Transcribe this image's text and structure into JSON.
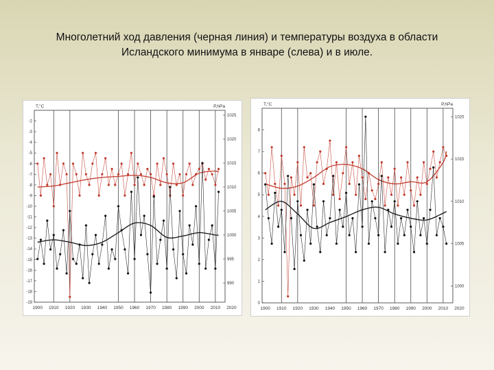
{
  "slide": {
    "title_line1": "Многолетний ход давления (черная линия) и температуры воздуха в области",
    "title_line2": "Исландского минимума в январе (слева) и в июле."
  },
  "colors": {
    "temperature": "#c0392b",
    "pressure": "#111111",
    "grid": "#4a4a4a"
  },
  "chart_data": [
    {
      "type": "line",
      "title": "",
      "xlabel": "",
      "ylabel_left": "T,°C",
      "ylabel_right": "P,hPa",
      "xlim": [
        1898,
        2016
      ],
      "xticks": [
        1900,
        1910,
        1920,
        1930,
        1940,
        1950,
        1960,
        1970,
        1980,
        1990,
        2000,
        2010,
        2020
      ],
      "y_left_lim": [
        -19,
        -1
      ],
      "y_left_ticks": [
        -2,
        -3,
        -4,
        -5,
        -6,
        -7,
        -8,
        -9,
        -10,
        -11,
        -12,
        -13,
        -14,
        -15,
        -16,
        -17,
        -18,
        -19
      ],
      "y_right_lim": [
        986,
        1026
      ],
      "y_right_ticks": [
        990,
        995,
        1000,
        1005,
        1010,
        1015,
        1020,
        1025
      ],
      "vertical_lines": [
        1910,
        1920,
        1950,
        1960,
        1970,
        1980,
        1990,
        2000,
        2010
      ],
      "series": [
        {
          "axis": "left",
          "color": "#c0392b",
          "x": [
            1900,
            1902,
            1904,
            1906,
            1908,
            1910,
            1912,
            1914,
            1916,
            1918,
            1920,
            1922,
            1924,
            1926,
            1928,
            1930,
            1932,
            1934,
            1936,
            1938,
            1940,
            1942,
            1944,
            1946,
            1948,
            1950,
            1952,
            1954,
            1956,
            1958,
            1960,
            1962,
            1964,
            1966,
            1968,
            1970,
            1972,
            1974,
            1976,
            1978,
            1980,
            1982,
            1984,
            1986,
            1988,
            1990,
            1992,
            1994,
            1996,
            1998,
            2000,
            2002,
            2004,
            2006,
            2008,
            2010,
            2012
          ],
          "values": [
            -6,
            -9,
            -5.5,
            -8,
            -7,
            -10,
            -5,
            -8,
            -6,
            -7,
            -18.5,
            -6,
            -7,
            -9,
            -5,
            -7,
            -8,
            -6,
            -5,
            -9,
            -7,
            -5.5,
            -8,
            -6.5,
            -8,
            -7,
            -6,
            -9,
            -7,
            -5,
            -8,
            -6,
            -7,
            -8,
            -6.5,
            -7,
            -9,
            -6,
            -8,
            -5.5,
            -7,
            -9,
            -6,
            -8,
            -7,
            -9,
            -7,
            -6,
            -8,
            -7,
            -6.5,
            -6,
            -7.5,
            -6.5,
            -7,
            -8,
            -6.5
          ]
        },
        {
          "axis": "left",
          "color": "#c0392b",
          "smooth": true,
          "x": [
            1900,
            1910,
            1920,
            1930,
            1940,
            1950,
            1960,
            1970,
            1980,
            1990,
            2000,
            2010,
            2012
          ],
          "values": [
            -8.2,
            -8.1,
            -7.8,
            -7.5,
            -7.3,
            -7.2,
            -7.1,
            -7.3,
            -7.8,
            -7.8,
            -6.9,
            -6.7,
            -6.8
          ]
        },
        {
          "axis": "right",
          "color": "#111111",
          "x": [
            1900,
            1902,
            1904,
            1906,
            1908,
            1910,
            1912,
            1914,
            1916,
            1918,
            1920,
            1922,
            1924,
            1926,
            1928,
            1930,
            1932,
            1934,
            1936,
            1938,
            1940,
            1942,
            1944,
            1946,
            1948,
            1950,
            1952,
            1954,
            1956,
            1958,
            1960,
            1962,
            1964,
            1966,
            1968,
            1970,
            1972,
            1974,
            1976,
            1978,
            1980,
            1982,
            1984,
            1986,
            1988,
            1990,
            1992,
            1994,
            1996,
            1998,
            2000,
            2002,
            2004,
            2006,
            2008,
            2010,
            2012
          ],
          "values": [
            995,
            999,
            994,
            1003,
            997,
            1000,
            993,
            996,
            1001,
            992,
            1005,
            995,
            994,
            998,
            991,
            1002,
            990,
            996,
            1000,
            994,
            998,
            1004,
            993,
            997,
            995,
            1006,
            1001,
            997,
            992,
            1009,
            995,
            1012,
            1000,
            1004,
            996,
            988,
            1008,
            994,
            999,
            1003,
            993,
            1010,
            997,
            991,
            1005,
            996,
            992,
            1002,
            998,
            1006,
            994,
            1015,
            993,
            999,
            1002,
            993,
            1009
          ]
        },
        {
          "axis": "right",
          "color": "#111111",
          "smooth": true,
          "x": [
            1900,
            1910,
            1920,
            1930,
            1940,
            1950,
            1960,
            1970,
            1980,
            1990,
            2000,
            2010,
            2012
          ],
          "values": [
            998.5,
            999,
            998.5,
            997.8,
            998.5,
            1000.5,
            1002.5,
            1002,
            999.5,
            999.8,
            1000.5,
            1000,
            1000
          ]
        }
      ]
    },
    {
      "type": "line",
      "title": "",
      "xlabel": "",
      "ylabel_left": "T,°C",
      "ylabel_right": "P,hPa",
      "xlim": [
        1898,
        2016
      ],
      "xticks": [
        1900,
        1910,
        1920,
        1930,
        1940,
        1950,
        1960,
        1970,
        1980,
        1990,
        2000,
        2010,
        2020
      ],
      "y_left_lim": [
        0,
        9
      ],
      "y_left_ticks": [
        0,
        1,
        2,
        3,
        4,
        5,
        6,
        7,
        8
      ],
      "y_right_lim": [
        998,
        1021
      ],
      "y_right_ticks": [
        1000,
        1005,
        1010,
        1015,
        1020
      ],
      "vertical_lines": [
        1910,
        1920,
        1950,
        1960,
        1970,
        1980,
        1990,
        2000,
        2010
      ],
      "series": [
        {
          "axis": "left",
          "color": "#c0392b",
          "x": [
            1900,
            1902,
            1904,
            1906,
            1908,
            1910,
            1912,
            1914,
            1916,
            1918,
            1920,
            1922,
            1924,
            1926,
            1928,
            1930,
            1932,
            1934,
            1936,
            1938,
            1940,
            1942,
            1944,
            1946,
            1948,
            1950,
            1952,
            1954,
            1956,
            1958,
            1960,
            1962,
            1964,
            1966,
            1968,
            1970,
            1972,
            1974,
            1976,
            1978,
            1980,
            1982,
            1984,
            1986,
            1988,
            1990,
            1992,
            1994,
            1996,
            1998,
            2000,
            2002,
            2004,
            2006,
            2008,
            2010,
            2012
          ],
          "values": [
            6,
            5,
            7.2,
            5.5,
            4.5,
            6.8,
            5.5,
            0.3,
            5.8,
            5,
            6.5,
            4.5,
            7.2,
            5.8,
            6,
            4.5,
            6.5,
            7,
            5.5,
            6.2,
            7.5,
            5,
            6.5,
            4.8,
            6,
            7.2,
            5.5,
            6.5,
            5,
            6.8,
            5.8,
            4.8,
            6,
            5.2,
            4.8,
            5.5,
            6.5,
            4.5,
            5.8,
            5,
            6.2,
            4.5,
            5.8,
            5,
            6.5,
            5.2,
            4.5,
            5.8,
            5,
            6.5,
            5.5,
            6.2,
            7,
            5.8,
            6.5,
            7.2,
            6.8
          ]
        },
        {
          "axis": "left",
          "color": "#c0392b",
          "smooth": true,
          "x": [
            1900,
            1910,
            1920,
            1930,
            1940,
            1950,
            1960,
            1970,
            1980,
            1990,
            2000,
            2010,
            2012
          ],
          "values": [
            5.5,
            5.3,
            5.4,
            5.8,
            6.3,
            6.4,
            6.2,
            5.7,
            5.5,
            5.6,
            5.6,
            6.5,
            7
          ]
        },
        {
          "axis": "right",
          "color": "#111111",
          "x": [
            1900,
            1902,
            1904,
            1906,
            1908,
            1910,
            1912,
            1914,
            1916,
            1918,
            1920,
            1922,
            1924,
            1926,
            1928,
            1930,
            1932,
            1934,
            1936,
            1938,
            1940,
            1942,
            1944,
            1946,
            1948,
            1950,
            1952,
            1954,
            1956,
            1958,
            1960,
            1962,
            1964,
            1966,
            1968,
            1970,
            1972,
            1974,
            1976,
            1978,
            1980,
            1982,
            1984,
            1986,
            1988,
            1990,
            1992,
            1994,
            1996,
            1998,
            2000,
            2002,
            2004,
            2006,
            2008,
            2010,
            2012
          ],
          "values": [
            1012,
            1008,
            1005,
            1011,
            1007,
            1009,
            1004,
            1013,
            1008,
            1002,
            1010,
            1006,
            1003,
            1009,
            1005,
            1012,
            1007,
            1004,
            1010,
            1006,
            1008,
            1013,
            1005,
            1009,
            1007,
            1011,
            1006,
            1008,
            1004,
            1012,
            1007,
            1020,
            1005,
            1010,
            1008,
            1006,
            1013,
            1004,
            1009,
            1007,
            1010,
            1005,
            1008,
            1006,
            1009,
            1007,
            1004,
            1010,
            1006,
            1008,
            1005,
            1009,
            1014,
            1006,
            1008,
            1007,
            1005
          ]
        },
        {
          "axis": "right",
          "color": "#111111",
          "smooth": true,
          "x": [
            1900,
            1910,
            1920,
            1930,
            1940,
            1950,
            1960,
            1970,
            1980,
            1990,
            2000,
            2010,
            2012
          ],
          "values": [
            1009,
            1010,
            1008.5,
            1006.8,
            1007.5,
            1008.2,
            1009,
            1009.3,
            1008.5,
            1008,
            1007.8,
            1008.6,
            1008.8
          ]
        }
      ]
    }
  ]
}
